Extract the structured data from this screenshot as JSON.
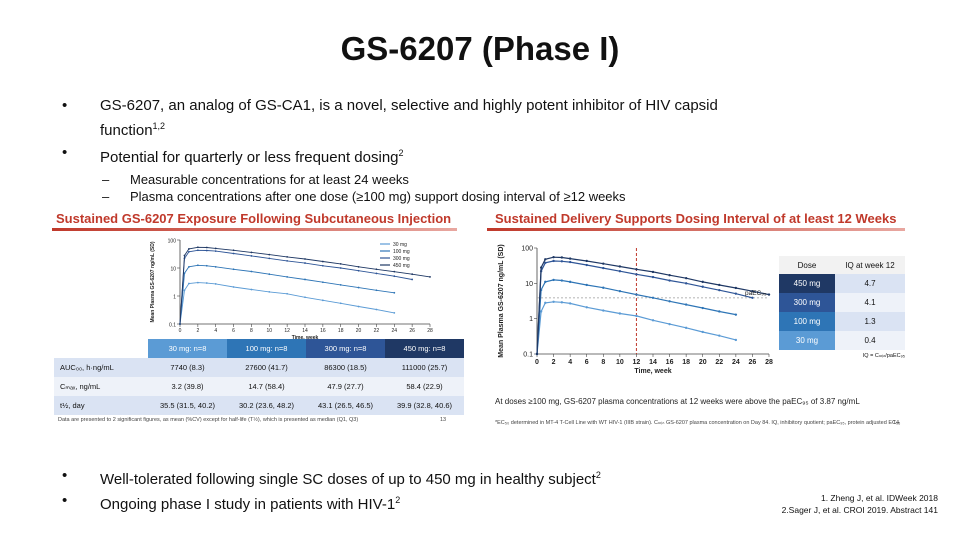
{
  "slide": {
    "title": "GS-6207 (Phase I)",
    "bullet1_main": "GS-6207, an analog of GS-CA1, is a novel, selective and highly potent inhibitor of HIV capsid function",
    "bullet1_sup": "1,2",
    "bullet2_main": "Potential for quarterly or less frequent dosing",
    "bullet2_sup": "2",
    "sub1": "Measurable concentrations for at least 24 weeks",
    "sub2": "Plasma concentrations after one dose (≥100 mg) support dosing interval of ≥12 weeks",
    "bullet3_main": "Well-tolerated following single SC doses of up to 450 mg in healthy subject",
    "bullet3_sup": "2",
    "bullet4_main": "Ongoing phase I study in patients with HIV-1",
    "bullet4_sup": "2",
    "ref1": "1. Zheng J, et al. IDWeek 2018",
    "ref2": "2.Sager J, et al. CROI 2019. Abstract 141",
    "bullet_char": "•",
    "dash_char": "–"
  },
  "left_panel": {
    "title": "Sustained GS-6207 Exposure Following Subcutaneous Injection",
    "table_headers": [
      "30 mg: n=8",
      "100 mg: n=8",
      "300 mg: n=8",
      "450 mg: n=8"
    ],
    "table_rows": [
      {
        "label": "AUC₀₀, h·ng/mL",
        "values": [
          "7740 (8.3)",
          "27600 (41.7)",
          "86300 (18.5)",
          "111000 (25.7)"
        ]
      },
      {
        "label": "Cₘₐₓ, ng/mL",
        "values": [
          "3.2 (39.8)",
          "14.7 (58.4)",
          "47.9 (27.7)",
          "58.4 (22.9)"
        ]
      },
      {
        "label": "t½, day",
        "values": [
          "35.5 (31.5, 40.2)",
          "30.2 (23.6, 48.2)",
          "43.1 (26.5, 46.5)",
          "39.9 (32.8, 40.6)"
        ]
      }
    ],
    "footnote": "Data are presented to 2 significant figures, as mean (%CV) except for half-life (T½), which is presented as median (Q1, Q3)",
    "page": "13"
  },
  "right_panel": {
    "title": "Sustained Delivery Supports Dosing Interval of at least 12 Weeks",
    "dose_header": "Dose",
    "iq_header": "IQ at week 12",
    "iq_rows": [
      {
        "dose": "450 mg",
        "iq": "4.7",
        "color": "#1f3864"
      },
      {
        "dose": "300 mg",
        "iq": "4.1",
        "color": "#2e5597"
      },
      {
        "dose": "100 mg",
        "iq": "1.3",
        "color": "#2e75b6"
      },
      {
        "dose": "30 mg",
        "iq": "0.4",
        "color": "#5b9bd5"
      }
    ],
    "iq_note": "IQ = Cₘᵢₙ/paEC₉₅",
    "paec_label": "paEC₉₅",
    "note": "At doses ≥100 mg, GS-6207 plasma concentrations at 12 weeks were above the paEC₉₅ of 3.87 ng/mL",
    "footnote": "*EC₅₀ determined in MT-4 T-Cell Line with WT HIV-1 (IIIB strain). Cₘᵢₙ GS-6207 plasma concentration on Day 84. IQ, inhibitory quotient; paEC₉₅, protein adjusted EC₉₅",
    "page": "14"
  },
  "chart_data": [
    {
      "type": "line",
      "title": "Sustained GS-6207 Exposure Following Subcutaneous Injection",
      "xlabel": "Time, week",
      "ylabel": "Mean Plasma GS-6207 ng/mL (SD)",
      "yscale": "log",
      "ylim": [
        0.1,
        100
      ],
      "xlim": [
        0,
        28
      ],
      "x_ticks": [
        "0",
        "2",
        "4",
        "6",
        "8",
        "10",
        "12",
        "14",
        "16",
        "18",
        "20",
        "22",
        "24",
        "26",
        "28"
      ],
      "y_ticks": [
        "100",
        "10",
        "1",
        "0.1"
      ],
      "legend_position": "top-right",
      "series": [
        {
          "name": "30 mg",
          "color": "#5b9bd5",
          "x": [
            0,
            0.5,
            1,
            2,
            3,
            4,
            6,
            8,
            10,
            12,
            14,
            16,
            18,
            20,
            22,
            24
          ],
          "y": [
            0.1,
            1.6,
            2.8,
            3.0,
            2.9,
            2.7,
            2.1,
            1.7,
            1.4,
            1.2,
            0.9,
            0.7,
            0.55,
            0.42,
            0.33,
            0.25
          ]
        },
        {
          "name": "100 mg",
          "color": "#2e75b6",
          "x": [
            0,
            0.5,
            1,
            2,
            3,
            4,
            6,
            8,
            10,
            12,
            14,
            16,
            18,
            20,
            22,
            24
          ],
          "y": [
            0.1,
            6.5,
            11,
            12.5,
            12,
            11,
            9,
            7.5,
            6,
            4.8,
            3.9,
            3.1,
            2.5,
            2.0,
            1.6,
            1.3
          ]
        },
        {
          "name": "300 mg",
          "color": "#2e5597",
          "x": [
            0,
            0.5,
            1,
            2,
            3,
            4,
            6,
            8,
            10,
            12,
            14,
            16,
            18,
            20,
            22,
            24,
            26
          ],
          "y": [
            0.1,
            22,
            38,
            43,
            42,
            40,
            33,
            27,
            22,
            18,
            15,
            12,
            10,
            8,
            6.4,
            5.1,
            3.9
          ]
        },
        {
          "name": "450 mg",
          "color": "#1f3864",
          "x": [
            0,
            0.5,
            1,
            2,
            3,
            4,
            6,
            8,
            10,
            12,
            14,
            16,
            18,
            20,
            22,
            24,
            26,
            28
          ],
          "y": [
            0.1,
            28,
            48,
            55,
            54,
            50,
            43,
            36,
            30,
            25,
            21,
            17,
            14,
            11,
            9,
            7.4,
            6,
            4.8
          ]
        }
      ]
    },
    {
      "type": "line",
      "title": "Sustained Delivery Supports Dosing Interval of at least 12 Weeks",
      "xlabel": "Time, week",
      "ylabel": "Mean Plasma GS-6207 ng/mL (SD)",
      "yscale": "log",
      "ylim": [
        0.1,
        100
      ],
      "xlim": [
        0,
        28
      ],
      "x_ticks": [
        "0",
        "2",
        "4",
        "6",
        "8",
        "10",
        "12",
        "14",
        "16",
        "18",
        "20",
        "22",
        "24",
        "26",
        "28"
      ],
      "y_ticks": [
        "100",
        "10",
        "1",
        "0.1"
      ],
      "threshold_y": 3.87,
      "vline_x": 12,
      "series": [
        {
          "name": "30 mg",
          "color": "#5b9bd5",
          "x": [
            0,
            0.5,
            1,
            2,
            3,
            4,
            6,
            8,
            10,
            12,
            14,
            16,
            18,
            20,
            22,
            24
          ],
          "y": [
            0.1,
            1.6,
            2.8,
            3.0,
            2.9,
            2.7,
            2.1,
            1.7,
            1.4,
            1.2,
            0.9,
            0.7,
            0.55,
            0.42,
            0.33,
            0.25
          ]
        },
        {
          "name": "100 mg",
          "color": "#2e75b6",
          "x": [
            0,
            0.5,
            1,
            2,
            3,
            4,
            6,
            8,
            10,
            12,
            14,
            16,
            18,
            20,
            22,
            24
          ],
          "y": [
            0.1,
            6.5,
            11,
            12.5,
            12,
            11,
            9,
            7.5,
            6,
            4.8,
            3.9,
            3.1,
            2.5,
            2.0,
            1.6,
            1.3
          ]
        },
        {
          "name": "300 mg",
          "color": "#2e5597",
          "x": [
            0,
            0.5,
            1,
            2,
            3,
            4,
            6,
            8,
            10,
            12,
            14,
            16,
            18,
            20,
            22,
            24,
            26
          ],
          "y": [
            0.1,
            22,
            38,
            43,
            42,
            40,
            33,
            27,
            22,
            18,
            15,
            12,
            10,
            8,
            6.4,
            5.1,
            3.9
          ]
        },
        {
          "name": "450 mg",
          "color": "#1f3864",
          "x": [
            0,
            0.5,
            1,
            2,
            3,
            4,
            6,
            8,
            10,
            12,
            14,
            16,
            18,
            20,
            22,
            24,
            26,
            28
          ],
          "y": [
            0.1,
            28,
            48,
            55,
            54,
            50,
            43,
            36,
            30,
            25,
            21,
            17,
            14,
            11,
            9,
            7.4,
            6,
            4.8
          ]
        }
      ]
    }
  ]
}
